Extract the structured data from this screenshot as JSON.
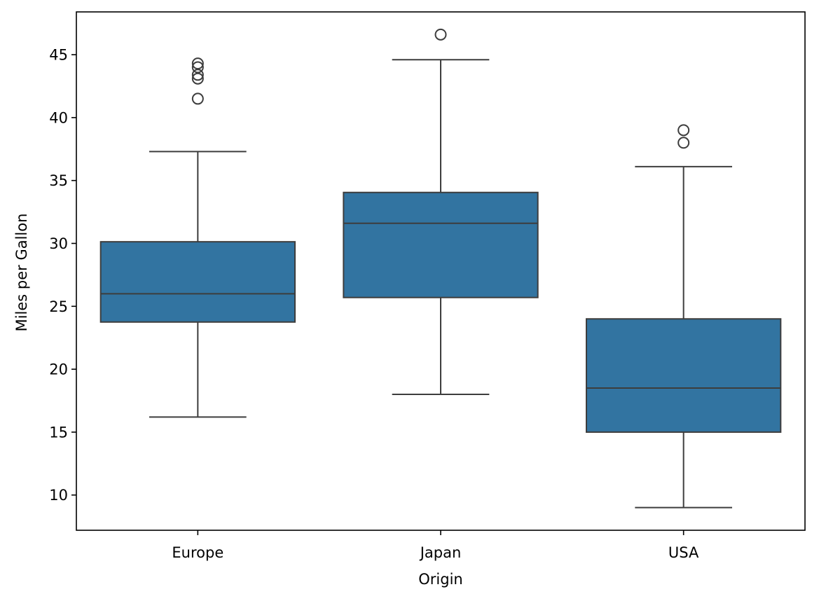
{
  "chart_data": {
    "type": "box",
    "title": "",
    "xlabel": "Origin",
    "ylabel": "Miles per Gallon",
    "ylim": [
      7.2,
      48.4
    ],
    "yticks": [
      10,
      15,
      20,
      25,
      30,
      35,
      40,
      45
    ],
    "grid": false,
    "colors": {
      "box_fill": "#3274a1",
      "line": "#3d3d3d",
      "frame": "#000000"
    },
    "categories": [
      "Europe",
      "Japan",
      "USA"
    ],
    "boxes": [
      {
        "category": "Europe",
        "whisker_low": 16.2,
        "q1": 23.75,
        "median": 26.0,
        "q3": 30.13,
        "whisker_high": 37.3,
        "outliers": [
          41.5,
          43.1,
          43.4,
          44.0,
          44.3
        ]
      },
      {
        "category": "Japan",
        "whisker_low": 18.0,
        "q1": 25.7,
        "median": 31.6,
        "q3": 34.05,
        "whisker_high": 44.6,
        "outliers": [
          46.6
        ]
      },
      {
        "category": "USA",
        "whisker_low": 9.0,
        "q1": 15.0,
        "median": 18.5,
        "q3": 24.0,
        "whisker_high": 36.1,
        "outliers": [
          38.0,
          39.0
        ]
      }
    ]
  }
}
